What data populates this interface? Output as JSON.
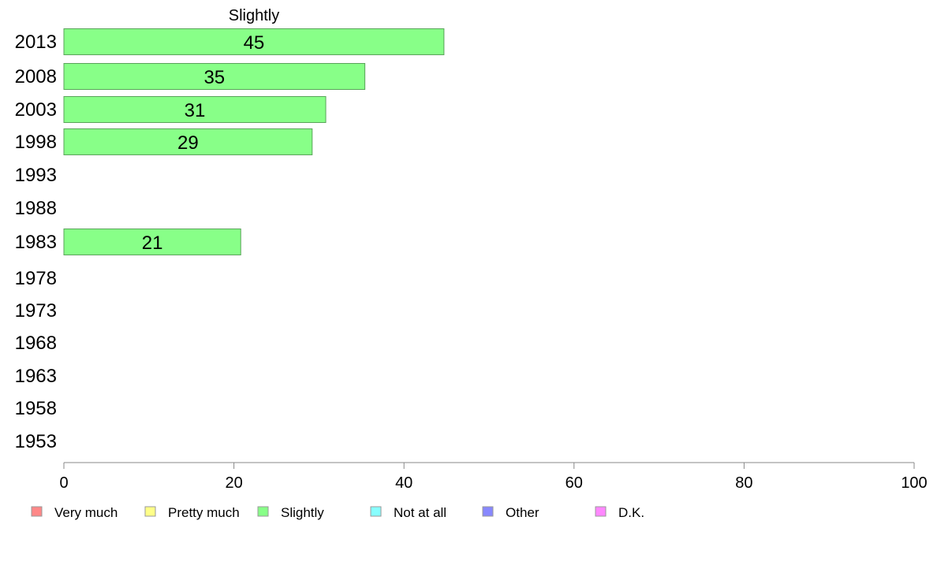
{
  "chart_data": {
    "type": "bar",
    "orientation": "horizontal",
    "title": "Slightly",
    "categories": [
      "2013",
      "2008",
      "2003",
      "1998",
      "1993",
      "1988",
      "1983",
      "1978",
      "1973",
      "1968",
      "1963",
      "1958",
      "1953"
    ],
    "series": [
      {
        "name": "Slightly",
        "values": [
          44.7,
          35.4,
          30.8,
          29.2,
          null,
          null,
          20.8,
          null,
          null,
          null,
          null,
          null,
          null
        ],
        "labels": [
          "45",
          "35",
          "31",
          "29",
          "",
          "",
          "21",
          "",
          "",
          "",
          "",
          "",
          ""
        ],
        "color": "#88ff88"
      }
    ],
    "xlim": [
      0,
      100
    ],
    "xticks": [
      "0",
      "20",
      "40",
      "60",
      "80",
      "100"
    ],
    "grid": false,
    "legend_position": "bottom",
    "legend": [
      {
        "label": "Very much",
        "color": "#ff8888"
      },
      {
        "label": "Pretty much",
        "color": "#ffff88"
      },
      {
        "label": "Slightly",
        "color": "#88ff88"
      },
      {
        "label": "Not at all",
        "color": "#88ffff"
      },
      {
        "label": "Other",
        "color": "#8888ff"
      },
      {
        "label": "D.K.",
        "color": "#ff88ff"
      }
    ]
  }
}
